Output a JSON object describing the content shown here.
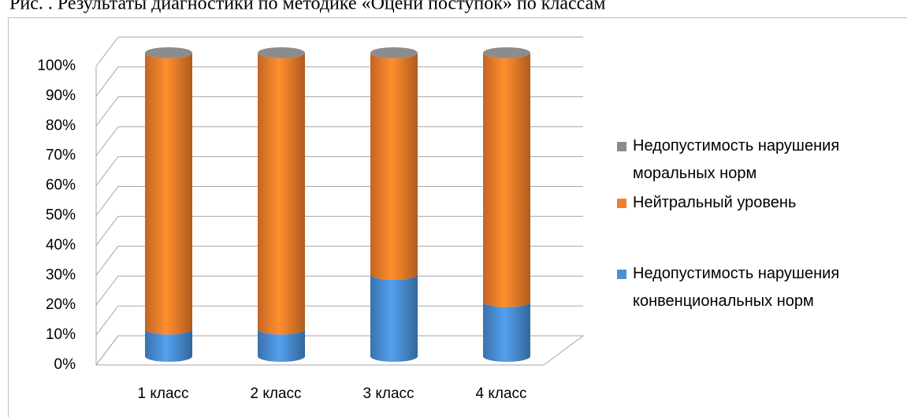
{
  "chart_data": {
    "type": "bar",
    "stacked": true,
    "title": "Рис. . Результаты диагностики по методике «Оцени поступок» по классам",
    "categories": [
      "1 класс",
      "2 класс",
      "3 класс",
      "4 класс"
    ],
    "series": [
      {
        "name": "Недопустимость нарушения конвенциональных норм",
        "color": "#4a8fd6",
        "values": [
          9,
          9,
          27,
          18
        ]
      },
      {
        "name": "Нейтральный уровень",
        "color": "#f47f2a",
        "values": [
          91,
          91,
          73,
          82
        ]
      },
      {
        "name": "Недопустимость нарушения моральных норм",
        "color": "#8c8c8c",
        "values": [
          0,
          0,
          0,
          0
        ]
      }
    ],
    "ylim": [
      0,
      100
    ],
    "yticks": [
      {
        "value": 0,
        "label": "0%"
      },
      {
        "value": 10,
        "label": "10%"
      },
      {
        "value": 20,
        "label": "20%"
      },
      {
        "value": 30,
        "label": "30%"
      },
      {
        "value": 40,
        "label": "40%"
      },
      {
        "value": 50,
        "label": "50%"
      },
      {
        "value": 60,
        "label": "60%"
      },
      {
        "value": 70,
        "label": "70%"
      },
      {
        "value": 80,
        "label": "80%"
      },
      {
        "value": 90,
        "label": "90%"
      },
      {
        "value": 100,
        "label": "100%"
      }
    ],
    "grid": true
  }
}
